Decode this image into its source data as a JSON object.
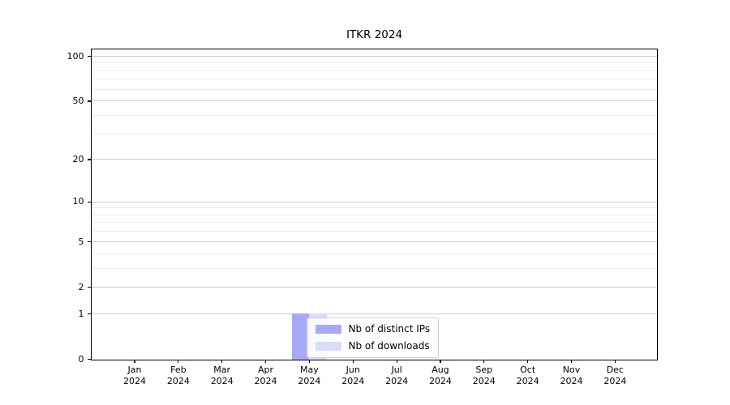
{
  "chart_data": {
    "type": "bar",
    "title": "ITKR 2024",
    "categories": [
      "Jan 2024",
      "Feb 2024",
      "Mar 2024",
      "Apr 2024",
      "May 2024",
      "Jun 2024",
      "Jul 2024",
      "Aug 2024",
      "Sep 2024",
      "Oct 2024",
      "Nov 2024",
      "Dec 2024"
    ],
    "series": [
      {
        "name": "Nb of distinct IPs",
        "color": "#a8a8f9",
        "values": [
          0,
          0,
          0,
          0,
          1,
          0,
          0,
          0,
          0,
          0,
          0,
          0
        ]
      },
      {
        "name": "Nb of downloads",
        "color": "#dbdbfa",
        "values": [
          0,
          0,
          0,
          0,
          1,
          0,
          0,
          0,
          0,
          0,
          0,
          0
        ]
      }
    ],
    "yscale": "log1p",
    "ylim": [
      0,
      111
    ],
    "y_major_ticks": [
      0,
      1,
      2,
      5,
      10,
      20,
      50,
      100
    ],
    "y_minor_gridlines": [
      3,
      4,
      6,
      7,
      8,
      9,
      30,
      40,
      60,
      70,
      80,
      90
    ],
    "grid": {
      "major_color": "#cbcbcb",
      "minor_color": "#ececec"
    },
    "legend": {
      "location": "inside lower center-left",
      "items": [
        "Nb of distinct IPs",
        "Nb of downloads"
      ]
    },
    "xlabel": "",
    "ylabel": ""
  }
}
